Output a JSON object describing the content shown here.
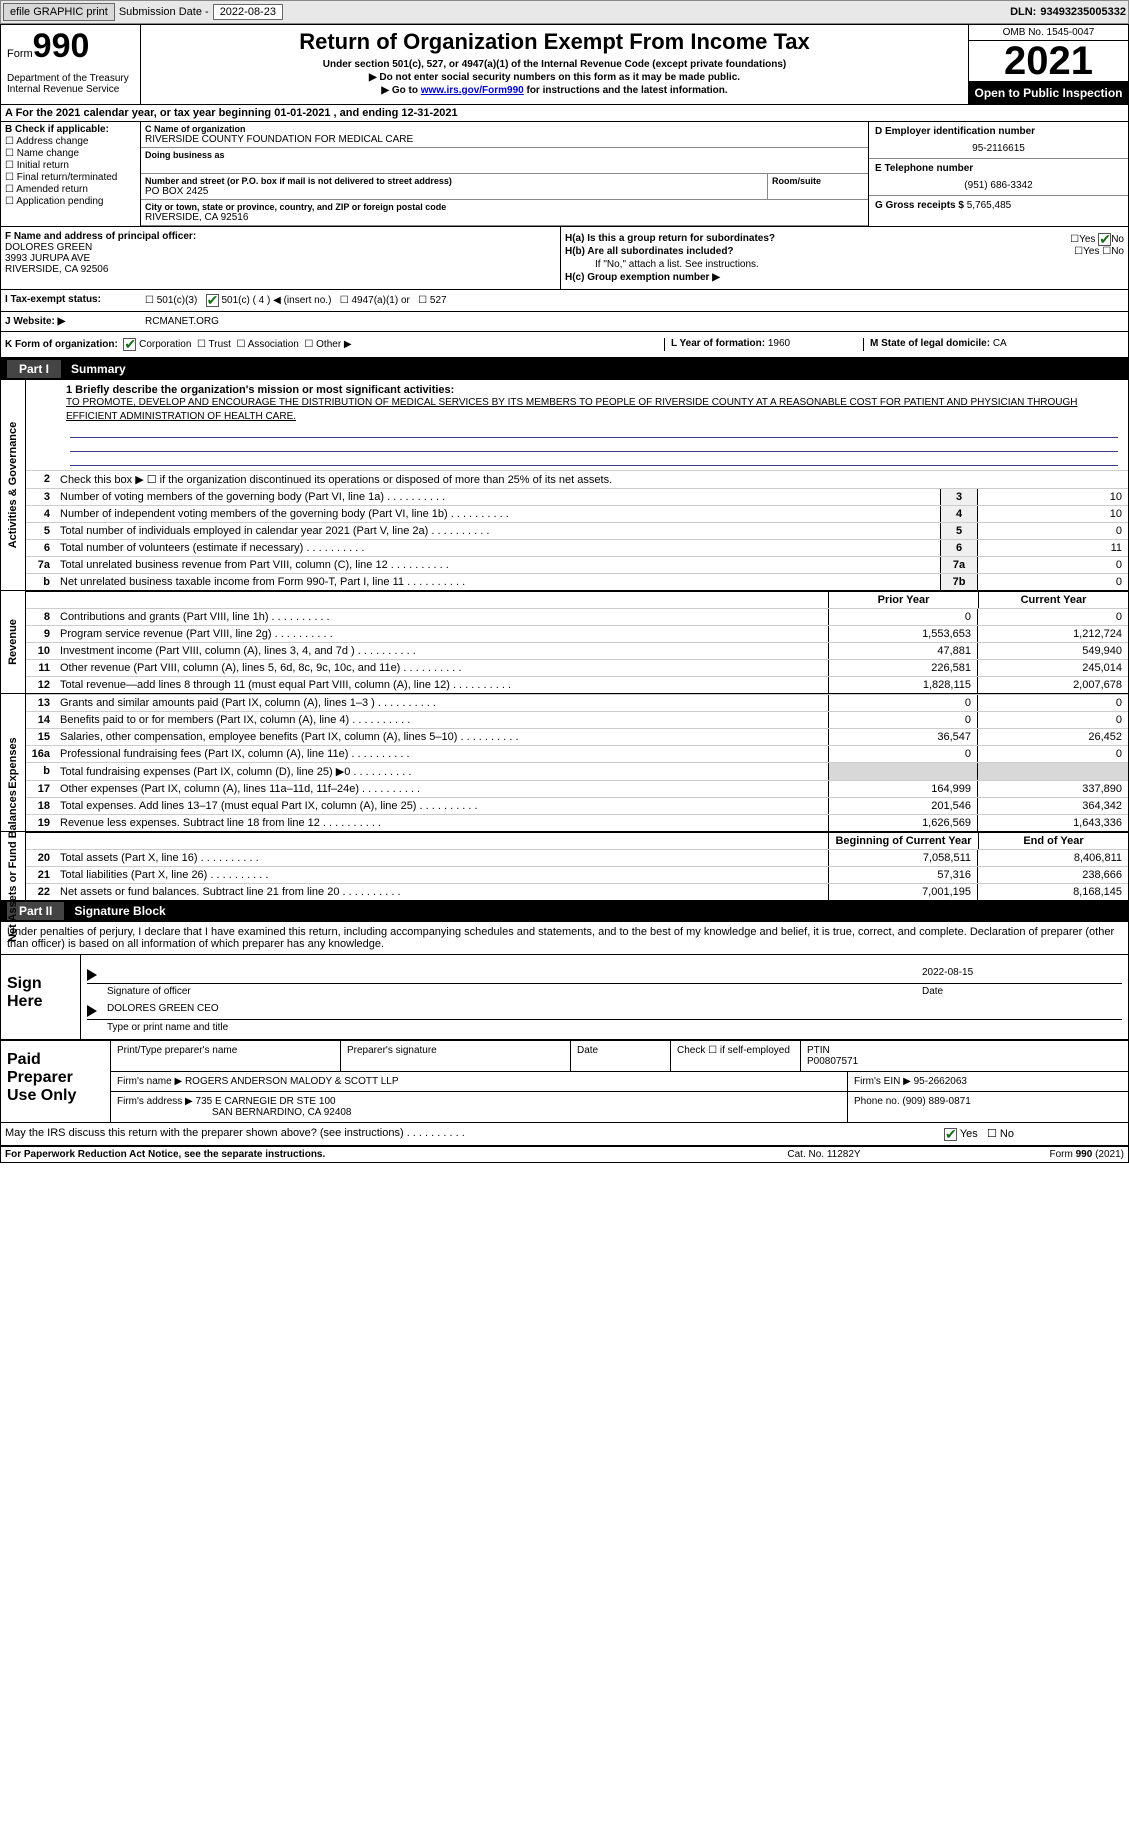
{
  "topbar": {
    "efile_btn": "efile GRAPHIC print",
    "sub_label": "Submission Date -",
    "sub_date": "2022-08-23",
    "dln_label": "DLN:",
    "dln": "93493235005332"
  },
  "header": {
    "form_label": "Form",
    "form_num": "990",
    "dept": "Department of the Treasury\nInternal Revenue Service",
    "title": "Return of Organization Exempt From Income Tax",
    "sub": "Under section 501(c), 527, or 4947(a)(1) of the Internal Revenue Code (except private foundations)",
    "arrow1": "▶ Do not enter social security numbers on this form as it may be made public.",
    "arrow2_pre": "▶ Go to ",
    "arrow2_link": "www.irs.gov/Form990",
    "arrow2_post": " for instructions and the latest information.",
    "omb": "OMB No. 1545-0047",
    "year": "2021",
    "open": "Open to Public Inspection"
  },
  "period": {
    "line_pre": "A For the 2021 calendar year, or tax year beginning ",
    "begin": "01-01-2021",
    "mid": " , and ending ",
    "end": "12-31-2021"
  },
  "sectionB": {
    "head": "B Check if applicable:",
    "opts": [
      "Address change",
      "Name change",
      "Initial return",
      "Final return/terminated",
      "Amended return",
      "Application pending"
    ]
  },
  "sectionC": {
    "name_lbl": "C Name of organization",
    "name": "RIVERSIDE COUNTY FOUNDATION FOR MEDICAL CARE",
    "dba_lbl": "Doing business as",
    "addr_lbl": "Number and street (or P.O. box if mail is not delivered to street address)",
    "addr": "PO BOX 2425",
    "suite_lbl": "Room/suite",
    "city_lbl": "City or town, state or province, country, and ZIP or foreign postal code",
    "city": "RIVERSIDE, CA  92516"
  },
  "sectionD": {
    "lbl": "D Employer identification number",
    "val": "95-2116615"
  },
  "sectionE": {
    "lbl": "E Telephone number",
    "val": "(951) 686-3342"
  },
  "sectionG": {
    "lbl": "G Gross receipts $",
    "val": "5,765,485"
  },
  "sectionF": {
    "lbl": "F Name and address of principal officer:",
    "name": "DOLORES GREEN",
    "addr1": "3993 JURUPA AVE",
    "addr2": "RIVERSIDE, CA  92506"
  },
  "sectionH": {
    "a": "H(a)  Is this a group return for subordinates?",
    "b": "H(b)  Are all subordinates included?",
    "b_note": "If \"No,\" attach a list. See instructions.",
    "c": "H(c)  Group exemption number ▶",
    "yes": "Yes",
    "no": "No"
  },
  "taxStatus": {
    "lbl": "I  Tax-exempt status:",
    "o1": "501(c)(3)",
    "o2": "501(c) ( 4 ) ◀ (insert no.)",
    "o3": "4947(a)(1) or",
    "o4": "527"
  },
  "website": {
    "lbl": "J  Website: ▶",
    "val": "RCMANET.ORG"
  },
  "K": {
    "lbl": "K Form of organization:",
    "o1": "Corporation",
    "o2": "Trust",
    "o3": "Association",
    "o4": "Other ▶",
    "L_lbl": "L Year of formation:",
    "L_val": "1960",
    "M_lbl": "M State of legal domicile:",
    "M_val": "CA"
  },
  "part1": {
    "header": "Summary",
    "partno": "Part I",
    "q1_lbl": "1  Briefly describe the organization's mission or most significant activities:",
    "q1_text": "TO PROMOTE, DEVELOP AND ENCOURAGE THE DISTRIBUTION OF MEDICAL SERVICES BY ITS MEMBERS TO PEOPLE OF RIVERSIDE COUNTY AT A REASONABLE COST FOR PATIENT AND PHYSICIAN THROUGH EFFICIENT ADMINISTRATION OF HEALTH CARE.",
    "q2": "Check this box ▶ ☐ if the organization discontinued its operations or disposed of more than 25% of its net assets.",
    "prior_hdr": "Prior Year",
    "curr_hdr": "Current Year",
    "begin_hdr": "Beginning of Current Year",
    "end_hdr": "End of Year",
    "vert_labels": {
      "act": "Activities & Governance",
      "rev": "Revenue",
      "exp": "Expenses",
      "net": "Net Assets or Fund Balances"
    }
  },
  "govRows": [
    {
      "n": "3",
      "d": "Number of voting members of the governing body (Part VI, line 1a)",
      "b": "3",
      "v": "10"
    },
    {
      "n": "4",
      "d": "Number of independent voting members of the governing body (Part VI, line 1b)",
      "b": "4",
      "v": "10"
    },
    {
      "n": "5",
      "d": "Total number of individuals employed in calendar year 2021 (Part V, line 2a)",
      "b": "5",
      "v": "0"
    },
    {
      "n": "6",
      "d": "Total number of volunteers (estimate if necessary)",
      "b": "6",
      "v": "11"
    },
    {
      "n": "7a",
      "d": "Total unrelated business revenue from Part VIII, column (C), line 12",
      "b": "7a",
      "v": "0"
    },
    {
      "n": "b",
      "d": "Net unrelated business taxable income from Form 990-T, Part I, line 11",
      "b": "7b",
      "v": "0"
    }
  ],
  "revRows": [
    {
      "n": "8",
      "d": "Contributions and grants (Part VIII, line 1h)",
      "p": "0",
      "c": "0"
    },
    {
      "n": "9",
      "d": "Program service revenue (Part VIII, line 2g)",
      "p": "1,553,653",
      "c": "1,212,724"
    },
    {
      "n": "10",
      "d": "Investment income (Part VIII, column (A), lines 3, 4, and 7d )",
      "p": "47,881",
      "c": "549,940"
    },
    {
      "n": "11",
      "d": "Other revenue (Part VIII, column (A), lines 5, 6d, 8c, 9c, 10c, and 11e)",
      "p": "226,581",
      "c": "245,014"
    },
    {
      "n": "12",
      "d": "Total revenue—add lines 8 through 11 (must equal Part VIII, column (A), line 12)",
      "p": "1,828,115",
      "c": "2,007,678"
    }
  ],
  "expRows": [
    {
      "n": "13",
      "d": "Grants and similar amounts paid (Part IX, column (A), lines 1–3 )",
      "p": "0",
      "c": "0"
    },
    {
      "n": "14",
      "d": "Benefits paid to or for members (Part IX, column (A), line 4)",
      "p": "0",
      "c": "0"
    },
    {
      "n": "15",
      "d": "Salaries, other compensation, employee benefits (Part IX, column (A), lines 5–10)",
      "p": "36,547",
      "c": "26,452"
    },
    {
      "n": "16a",
      "d": "Professional fundraising fees (Part IX, column (A), line 11e)",
      "p": "0",
      "c": "0"
    },
    {
      "n": "b",
      "d": "Total fundraising expenses (Part IX, column (D), line 25) ▶0",
      "p": "",
      "c": "",
      "shade": true
    },
    {
      "n": "17",
      "d": "Other expenses (Part IX, column (A), lines 11a–11d, 11f–24e)",
      "p": "164,999",
      "c": "337,890"
    },
    {
      "n": "18",
      "d": "Total expenses. Add lines 13–17 (must equal Part IX, column (A), line 25)",
      "p": "201,546",
      "c": "364,342"
    },
    {
      "n": "19",
      "d": "Revenue less expenses. Subtract line 18 from line 12",
      "p": "1,626,569",
      "c": "1,643,336"
    }
  ],
  "netRows": [
    {
      "n": "20",
      "d": "Total assets (Part X, line 16)",
      "p": "7,058,511",
      "c": "8,406,811"
    },
    {
      "n": "21",
      "d": "Total liabilities (Part X, line 26)",
      "p": "57,316",
      "c": "238,666"
    },
    {
      "n": "22",
      "d": "Net assets or fund balances. Subtract line 21 from line 20",
      "p": "7,001,195",
      "c": "8,168,145"
    }
  ],
  "part2": {
    "partno": "Part II",
    "header": "Signature Block",
    "declaration": "Under penalties of perjury, I declare that I have examined this return, including accompanying schedules and statements, and to the best of my knowledge and belief, it is true, correct, and complete. Declaration of preparer (other than officer) is based on all information of which preparer has any knowledge."
  },
  "sign": {
    "here": "Sign Here",
    "sig_lbl": "Signature of officer",
    "date_lbl": "Date",
    "date_val": "2022-08-15",
    "name": "DOLORES GREEN CEO",
    "name_lbl": "Type or print name and title"
  },
  "paidPrep": {
    "label": "Paid Preparer Use Only",
    "r1c1": "Print/Type preparer's name",
    "r1c2": "Preparer's signature",
    "r1c3": "Date",
    "r1c4_lbl": "Check ☐ if self-employed",
    "r1c5_lbl": "PTIN",
    "r1c5_val": "P00807571",
    "r2_lbl": "Firm's name    ▶",
    "r2_val": "ROGERS ANDERSON MALODY & SCOTT LLP",
    "r2b_lbl": "Firm's EIN ▶",
    "r2b_val": "95-2662063",
    "r3_lbl": "Firm's address ▶",
    "r3_val1": "735 E CARNEGIE DR STE 100",
    "r3_val2": "SAN BERNARDINO, CA  92408",
    "r3b_lbl": "Phone no.",
    "r3b_val": "(909) 889-0871"
  },
  "discuss": {
    "q": "May the IRS discuss this return with the preparer shown above? (see instructions)",
    "yes": "Yes",
    "no": "No"
  },
  "footer": {
    "l": "For Paperwork Reduction Act Notice, see the separate instructions.",
    "m": "Cat. No. 11282Y",
    "r": "Form 990 (2021)"
  },
  "dots": " .   .   .   .   .   .   .   .   .   ."
}
